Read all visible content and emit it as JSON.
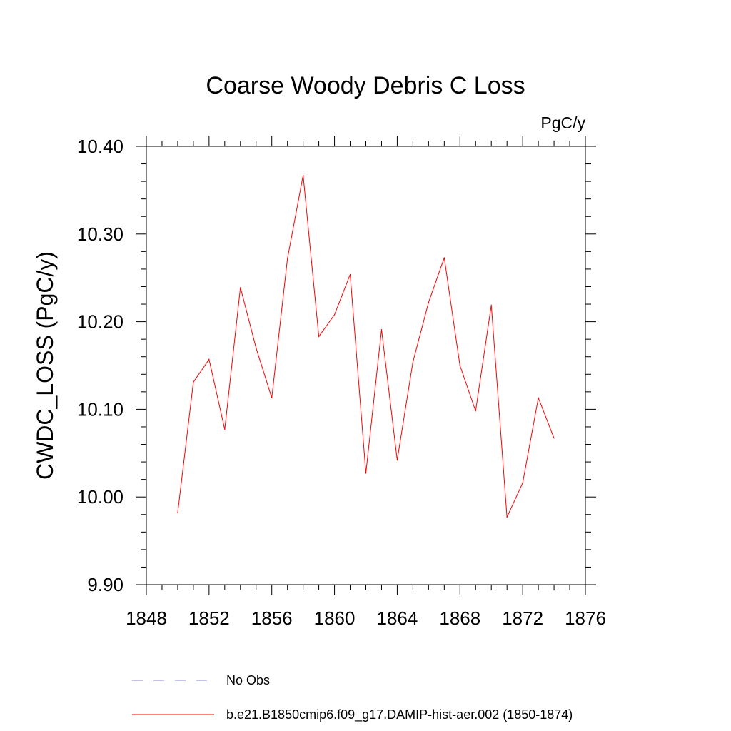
{
  "chart_data": {
    "type": "line",
    "title": "Coarse Woody Debris C Loss",
    "units": "PgC/y",
    "ylabel": "CWDC_LOSS  (PgC/y)",
    "xlabel": "",
    "xlim": [
      1848,
      1876
    ],
    "ylim": [
      9.9,
      10.4
    ],
    "xticks": [
      1848,
      1852,
      1856,
      1860,
      1864,
      1868,
      1872,
      1876
    ],
    "yticks": [
      9.9,
      10.0,
      10.1,
      10.2,
      10.3,
      10.4
    ],
    "yticks_labels": [
      "9.90",
      "10.00",
      "10.10",
      "10.20",
      "10.30",
      "10.40"
    ],
    "x": [
      1850,
      1851,
      1852,
      1853,
      1854,
      1855,
      1856,
      1857,
      1858,
      1859,
      1860,
      1861,
      1862,
      1863,
      1864,
      1865,
      1866,
      1867,
      1868,
      1869,
      1870,
      1871,
      1872,
      1873,
      1874
    ],
    "series": [
      {
        "name": "b.e21.B1850cmip6.f09_g17.DAMIP-hist-aer.002 (1850-1874)",
        "color": "#ff0000",
        "values": [
          9.982,
          10.131,
          10.157,
          10.077,
          10.239,
          10.17,
          10.113,
          10.272,
          10.367,
          10.183,
          10.208,
          10.254,
          10.027,
          10.191,
          10.042,
          10.154,
          10.222,
          10.273,
          10.15,
          10.098,
          10.219,
          9.977,
          10.016,
          10.113,
          10.067
        ]
      }
    ],
    "legend": [
      {
        "label": "No Obs",
        "style": "dashed",
        "color": "#8888cc"
      },
      {
        "label": "b.e21.B1850cmip6.f09_g17.DAMIP-hist-aer.002 (1850-1874)",
        "style": "solid",
        "color": "#ff0000"
      }
    ],
    "legend_position": "bottom",
    "grid": false
  }
}
